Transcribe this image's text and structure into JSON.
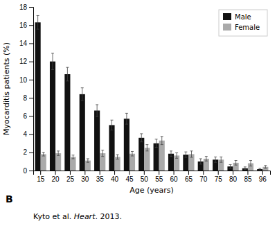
{
  "chart_data": {
    "type": "bar",
    "categories": [
      "15",
      "20",
      "25",
      "30",
      "35",
      "40",
      "45",
      "50",
      "55",
      "60",
      "65",
      "70",
      "75",
      "80",
      "85",
      "96"
    ],
    "series": [
      {
        "name": "Male",
        "color": "#111111",
        "values": [
          16.3,
          12.0,
          10.6,
          8.4,
          6.6,
          5.0,
          5.7,
          3.6,
          3.0,
          1.85,
          1.75,
          1.0,
          1.2,
          0.45,
          0.25,
          0.15
        ],
        "errors": [
          0.75,
          0.9,
          0.75,
          0.7,
          0.65,
          0.55,
          0.6,
          0.45,
          0.45,
          0.3,
          0.3,
          0.3,
          0.3,
          0.2,
          0.15,
          0.1
        ]
      },
      {
        "name": "Female",
        "color": "#aaaaaa",
        "values": [
          1.8,
          1.9,
          1.5,
          1.1,
          1.9,
          1.5,
          1.85,
          2.5,
          3.3,
          1.65,
          1.8,
          1.3,
          1.2,
          0.85,
          0.8,
          0.4
        ],
        "errors": [
          0.2,
          0.25,
          0.2,
          0.2,
          0.35,
          0.25,
          0.25,
          0.35,
          0.45,
          0.3,
          0.35,
          0.25,
          0.3,
          0.25,
          0.3,
          0.15
        ]
      }
    ],
    "xlabel": "Age (years)",
    "ylabel": "Myocarditis patients (%)",
    "ylim": [
      0,
      18
    ],
    "yticks": [
      0,
      2,
      4,
      6,
      8,
      10,
      12,
      14,
      16,
      18
    ],
    "legend": "upper right",
    "grid": false,
    "annotations": [
      "B",
      "Kyto et al. ",
      "Heart",
      ". 2013."
    ]
  }
}
